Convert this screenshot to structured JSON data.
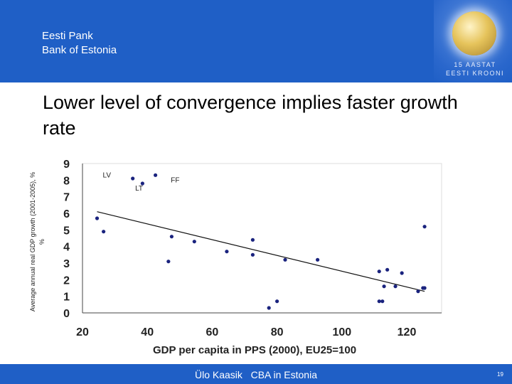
{
  "header": {
    "bank_name_line1": "Eesti Pank",
    "bank_name_line2": "Bank of Estonia",
    "coin_line1": "15 AASTAT",
    "coin_line2": "EESTI KROONI"
  },
  "slide": {
    "title": "Lower level of convergence implies faster growth rate"
  },
  "footer": {
    "presenter": "Ülo Kaasik",
    "topic": "CBA in Estonia",
    "page": "19"
  },
  "colors": {
    "brand_blue": "#1f5fc6",
    "point": "#1a237e",
    "trend": "#111111"
  },
  "chart_data": {
    "type": "scatter",
    "title": "",
    "xlabel": "GDP per capita in PPS (2000), EU25=100",
    "ylabel": "Average annual real GDP growth (2001-2005), %",
    "xlim": [
      20,
      130
    ],
    "ylim": [
      0,
      9
    ],
    "x_ticks": [
      "20",
      "40",
      "60",
      "80",
      "100",
      "120"
    ],
    "y_ticks": [
      "0",
      "1",
      "2",
      "3",
      "4",
      "5",
      "6",
      "7",
      "8",
      "9"
    ],
    "points": [
      {
        "x": 24.5,
        "y": 5.7
      },
      {
        "x": 26.5,
        "y": 4.9
      },
      {
        "x": 35.5,
        "y": 8.1
      },
      {
        "x": 38.5,
        "y": 7.8
      },
      {
        "x": 42.5,
        "y": 8.3
      },
      {
        "x": 46.5,
        "y": 3.1
      },
      {
        "x": 47.5,
        "y": 4.6
      },
      {
        "x": 54.5,
        "y": 4.3
      },
      {
        "x": 64.5,
        "y": 3.7
      },
      {
        "x": 72.5,
        "y": 4.4
      },
      {
        "x": 72.5,
        "y": 3.5
      },
      {
        "x": 77.5,
        "y": 0.3
      },
      {
        "x": 80.0,
        "y": 0.7
      },
      {
        "x": 82.5,
        "y": 3.2
      },
      {
        "x": 92.5,
        "y": 3.2
      },
      {
        "x": 111.5,
        "y": 0.7
      },
      {
        "x": 111.5,
        "y": 2.5
      },
      {
        "x": 112.5,
        "y": 0.7
      },
      {
        "x": 113.0,
        "y": 1.6
      },
      {
        "x": 114.0,
        "y": 2.6
      },
      {
        "x": 116.5,
        "y": 1.6
      },
      {
        "x": 118.5,
        "y": 2.4
      },
      {
        "x": 123.5,
        "y": 1.3
      },
      {
        "x": 125.0,
        "y": 1.5
      },
      {
        "x": 125.5,
        "y": 1.5
      },
      {
        "x": 125.5,
        "y": 5.2
      }
    ],
    "trendline": {
      "x": [
        24.5,
        125.5
      ],
      "y": [
        6.1,
        1.3
      ]
    },
    "annotations": [
      {
        "text": "LV",
        "x": 24.5,
        "y": 8.3
      },
      {
        "text": "LT",
        "x": 34.5,
        "y": 7.5
      },
      {
        "text": "FF",
        "x": 45.5,
        "y": 8.0
      }
    ]
  }
}
